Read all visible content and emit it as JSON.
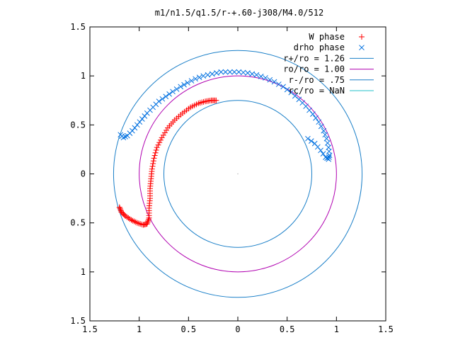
{
  "chart_data": {
    "type": "scatter",
    "title": "m1/n1.5/q1.5/r-+.60-j308/M4.0/512",
    "xlim": [
      -1.5,
      1.5
    ],
    "ylim": [
      -1.5,
      1.5
    ],
    "x_ticks": [
      -1.5,
      -1,
      -0.5,
      0,
      0.5,
      1,
      1.5
    ],
    "y_ticks": [
      -1.5,
      -1,
      -0.5,
      0,
      0.5,
      1,
      1.5
    ],
    "x_tick_labels": [
      "1.5",
      "1",
      "0.5",
      "0",
      "0.5",
      "1",
      "1.5"
    ],
    "y_tick_labels": [
      "1.5",
      "1",
      "0.5",
      "0",
      "0.5",
      "1",
      "1.5"
    ],
    "grid": false,
    "legend_position": "top-right",
    "series": [
      {
        "name": "W phase",
        "marker": "plus",
        "color": "#ff0000",
        "x": [
          -1.2,
          -1.18,
          -1.14,
          -1.08,
          -1.02,
          -0.96,
          -0.92,
          -0.9,
          -0.9,
          -0.89,
          -0.89,
          -0.88,
          -0.87,
          -0.85,
          -0.82,
          -0.77,
          -0.71,
          -0.64,
          -0.56,
          -0.48,
          -0.4,
          -0.33,
          -0.27,
          -0.22
        ],
        "y": [
          -0.34,
          -0.39,
          -0.43,
          -0.47,
          -0.5,
          -0.52,
          -0.51,
          -0.45,
          -0.35,
          -0.25,
          -0.15,
          -0.05,
          0.05,
          0.16,
          0.27,
          0.37,
          0.47,
          0.55,
          0.62,
          0.68,
          0.72,
          0.74,
          0.75,
          0.75
        ]
      },
      {
        "name": "drho phase",
        "marker": "x",
        "color": "#0070e0",
        "x": [
          -1.19,
          -1.16,
          -1.12,
          -1.07,
          -1.02,
          -0.97,
          -0.92,
          -0.86,
          -0.8,
          -0.73,
          -0.66,
          -0.58,
          -0.51,
          -0.43,
          -0.35,
          -0.26,
          -0.17,
          -0.08,
          0.01,
          0.1,
          0.19,
          0.28,
          0.37,
          0.46,
          0.54,
          0.62,
          0.69,
          0.76,
          0.82,
          0.87,
          0.9,
          0.92,
          0.93,
          0.92,
          0.89,
          0.84,
          0.78,
          0.71
        ],
        "y": [
          0.4,
          0.37,
          0.39,
          0.44,
          0.5,
          0.56,
          0.62,
          0.68,
          0.74,
          0.79,
          0.84,
          0.89,
          0.93,
          0.97,
          1.0,
          1.02,
          1.04,
          1.04,
          1.04,
          1.03,
          1.01,
          0.98,
          0.94,
          0.89,
          0.83,
          0.76,
          0.69,
          0.61,
          0.53,
          0.44,
          0.36,
          0.27,
          0.19,
          0.15,
          0.17,
          0.24,
          0.31,
          0.36
        ]
      },
      {
        "name": "r+/ro = 1.26",
        "type": "circle",
        "radius": 1.26,
        "color": "#1a7fc8"
      },
      {
        "name": "ro/ro = 1.00",
        "type": "circle",
        "radius": 1.0,
        "color": "#b000b0"
      },
      {
        "name": "r-/ro = .75",
        "type": "circle",
        "radius": 0.75,
        "color": "#1a7fc8"
      },
      {
        "name": "rc/ro = NaN",
        "type": "circle",
        "radius": null,
        "color": "#20c0c8"
      }
    ]
  }
}
